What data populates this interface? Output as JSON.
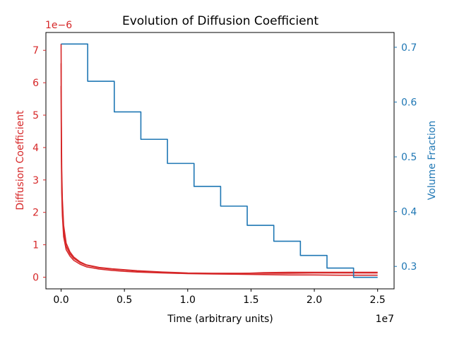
{
  "chart_data": {
    "type": "line",
    "title": "Evolution of Diffusion Coefficient",
    "xlabel": "Time (arbitrary units)",
    "x_offset_label": "1e7",
    "xlim": [
      -0.12,
      2.63
    ],
    "x_ticks": [
      {
        "value": 0.0,
        "label": "0.0"
      },
      {
        "value": 0.5,
        "label": "0.5"
      },
      {
        "value": 1.0,
        "label": "1.0"
      },
      {
        "value": 1.5,
        "label": "1.5"
      },
      {
        "value": 2.0,
        "label": "2.0"
      },
      {
        "value": 2.5,
        "label": "2.5"
      }
    ],
    "y_left": {
      "label": "Diffusion Coefficient",
      "offset_label": "1e−6",
      "color": "#d62728",
      "ylim": [
        -0.36,
        7.55
      ],
      "ticks": [
        {
          "value": 0,
          "label": "0"
        },
        {
          "value": 1,
          "label": "1"
        },
        {
          "value": 2,
          "label": "2"
        },
        {
          "value": 3,
          "label": "3"
        },
        {
          "value": 4,
          "label": "4"
        },
        {
          "value": 5,
          "label": "5"
        },
        {
          "value": 6,
          "label": "6"
        },
        {
          "value": 7,
          "label": "7"
        }
      ]
    },
    "y_right": {
      "label": "Volume Fraction",
      "color": "#1f77b4",
      "ylim": [
        0.259,
        0.727
      ],
      "ticks": [
        {
          "value": 0.3,
          "label": "0.3"
        },
        {
          "value": 0.4,
          "label": "0.4"
        },
        {
          "value": 0.5,
          "label": "0.5"
        },
        {
          "value": 0.6,
          "label": "0.6"
        },
        {
          "value": 0.7,
          "label": "0.7"
        }
      ]
    },
    "series": [
      {
        "axis": "left",
        "color": "#d62728",
        "x": [
          0.0,
          0.002,
          0.005,
          0.01,
          0.02,
          0.04,
          0.07,
          0.1,
          0.15,
          0.2,
          0.3,
          0.4,
          0.5,
          0.6,
          0.8,
          1.0,
          1.2,
          1.4,
          1.6,
          1.8,
          2.0,
          2.2,
          2.4,
          2.5
        ],
        "y": [
          7.2,
          4.8,
          3.3,
          2.4,
          1.6,
          1.05,
          0.78,
          0.62,
          0.47,
          0.38,
          0.3,
          0.26,
          0.23,
          0.2,
          0.16,
          0.13,
          0.12,
          0.12,
          0.12,
          0.12,
          0.13,
          0.13,
          0.13,
          0.13
        ]
      },
      {
        "axis": "left",
        "color": "#d62728",
        "x": [
          0.0,
          0.002,
          0.005,
          0.01,
          0.02,
          0.04,
          0.07,
          0.1,
          0.15,
          0.2,
          0.3,
          0.4,
          0.5,
          0.6,
          0.8,
          1.0,
          1.2,
          1.4,
          1.6,
          1.8,
          2.0,
          2.2,
          2.4,
          2.5
        ],
        "y": [
          6.6,
          4.2,
          2.9,
          2.1,
          1.4,
          0.95,
          0.72,
          0.58,
          0.45,
          0.37,
          0.29,
          0.25,
          0.22,
          0.19,
          0.15,
          0.12,
          0.11,
          0.11,
          0.14,
          0.15,
          0.15,
          0.15,
          0.15,
          0.15
        ]
      },
      {
        "axis": "left",
        "color": "#d62728",
        "x": [
          0.0,
          0.002,
          0.005,
          0.01,
          0.02,
          0.04,
          0.07,
          0.1,
          0.15,
          0.2,
          0.3,
          0.4,
          0.5,
          0.6,
          0.8,
          1.0,
          1.2,
          1.4,
          1.6,
          1.8,
          2.0,
          2.2,
          2.4,
          2.5
        ],
        "y": [
          5.9,
          3.8,
          2.6,
          1.9,
          1.25,
          0.85,
          0.65,
          0.52,
          0.4,
          0.32,
          0.25,
          0.21,
          0.18,
          0.16,
          0.13,
          0.11,
          0.1,
          0.09,
          0.08,
          0.07,
          0.07,
          0.06,
          0.06,
          0.06
        ]
      },
      {
        "axis": "right",
        "color": "#1f77b4",
        "step": true,
        "x": [
          0.0,
          0.21,
          0.21,
          0.42,
          0.42,
          0.63,
          0.63,
          0.84,
          0.84,
          1.05,
          1.05,
          1.26,
          1.26,
          1.47,
          1.47,
          1.68,
          1.68,
          1.89,
          1.89,
          2.1,
          2.1,
          2.31,
          2.31,
          2.5
        ],
        "y": [
          0.706,
          0.706,
          0.638,
          0.638,
          0.582,
          0.582,
          0.532,
          0.532,
          0.488,
          0.488,
          0.446,
          0.446,
          0.41,
          0.41,
          0.375,
          0.375,
          0.346,
          0.346,
          0.32,
          0.32,
          0.297,
          0.297,
          0.28,
          0.28
        ]
      }
    ]
  }
}
